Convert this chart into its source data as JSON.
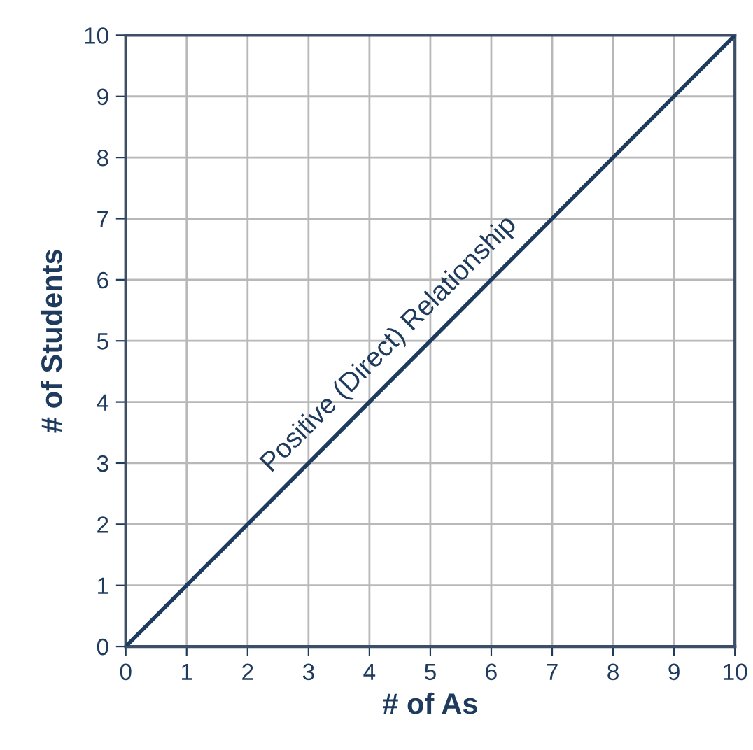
{
  "chart_data": {
    "type": "line",
    "xlabel": "# of As",
    "ylabel": "# of Students",
    "x": [
      0,
      10
    ],
    "series": [
      {
        "color": "#1e3a5c",
        "values": [
          0,
          10
        ]
      }
    ],
    "xlim": [
      0,
      10
    ],
    "ylim": [
      0,
      10
    ],
    "xticks": [
      0,
      1,
      2,
      3,
      4,
      5,
      6,
      7,
      8,
      9,
      10
    ],
    "yticks": [
      0,
      1,
      2,
      3,
      4,
      5,
      6,
      7,
      8,
      9,
      10
    ],
    "grid": true,
    "marker": "none",
    "line_style": "solid",
    "annotations": [
      {
        "text": "Positive (Direct) Relationship",
        "x": 4.6,
        "y": 4.6
      }
    ]
  }
}
